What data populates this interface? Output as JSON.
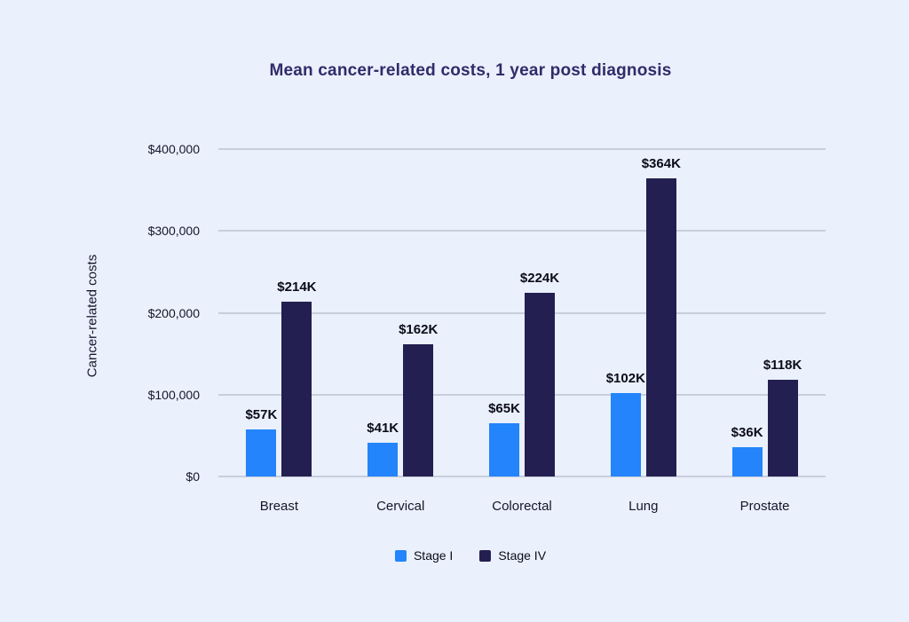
{
  "colors": {
    "background": "#EAF0FC",
    "gridline": "#C8CEDC",
    "title": "#312B69",
    "text": "#15162B",
    "label": "#0B0C18",
    "stage_i": "#2384FC",
    "stage_iv": "#241F51"
  },
  "chart_data": {
    "type": "bar",
    "title": "Mean cancer-related costs, 1 year post diagnosis",
    "xlabel": "",
    "ylabel": "Cancer-related costs",
    "categories": [
      "Breast",
      "Cervical",
      "Colorectal",
      "Lung",
      "Prostate"
    ],
    "series": [
      {
        "name": "Stage I",
        "color": "#2384FC",
        "values": [
          57000,
          41000,
          65000,
          102000,
          36000
        ],
        "labels": [
          "$57K",
          "$41K",
          "$65K",
          "$102K",
          "$36K"
        ]
      },
      {
        "name": "Stage IV",
        "color": "#241F51",
        "values": [
          214000,
          162000,
          224000,
          364000,
          118000
        ],
        "labels": [
          "$214K",
          "$162K",
          "$224K",
          "$364K",
          "$118K"
        ]
      }
    ],
    "y_ticks": [
      {
        "value": 400000,
        "label": "$400,000"
      },
      {
        "value": 300000,
        "label": "$300,000"
      },
      {
        "value": 200000,
        "label": "$200,000"
      },
      {
        "value": 100000,
        "label": "$100,000"
      },
      {
        "value": 0,
        "label": "$0"
      }
    ],
    "ylim": [
      0,
      400000
    ],
    "grid": true,
    "legend_position": "bottom"
  }
}
